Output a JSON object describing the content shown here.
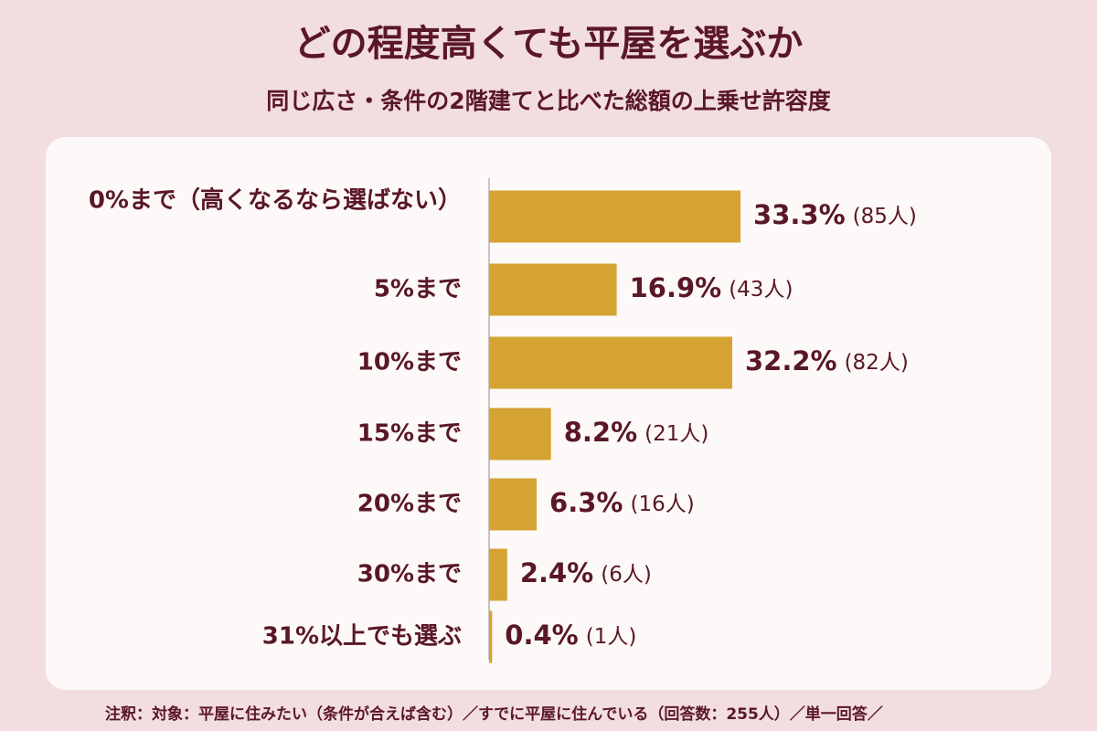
{
  "chart_data": {
    "type": "bar",
    "orientation": "horizontal",
    "title": "どの程度高くても平屋を選ぶか",
    "subtitle": "同じ広さ・条件の2階建てと比べた総額の上乗せ許容度",
    "categories": [
      "0%まで（高くなるなら選ばない）",
      "5%まで",
      "10%まで",
      "15%まで",
      "20%まで",
      "30%まで",
      "31%以上でも選ぶ"
    ],
    "values": [
      33.3,
      16.9,
      32.2,
      8.2,
      6.3,
      2.4,
      0.4
    ],
    "value_labels": [
      "33.3%",
      "16.9%",
      "32.2%",
      "8.2%",
      "6.3%",
      "2.4%",
      "0.4%"
    ],
    "counts": [
      85,
      43,
      82,
      21,
      16,
      6,
      1
    ],
    "count_labels": [
      "(85人)",
      "(43人)",
      "(82人)",
      "(21人)",
      "(16人)",
      "(6人)",
      "(1人)"
    ],
    "color": "#d4a332",
    "note": "注釈：対象：平屋に住みたい（条件が合えば含む）／すでに平屋に住んでいる（回答数：255人）／単一回答／"
  }
}
